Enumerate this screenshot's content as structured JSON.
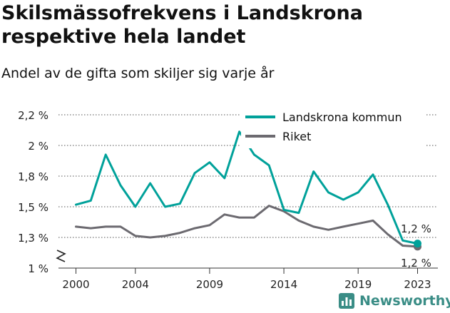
{
  "header": {
    "title": "Skilsmässofrekvens i Landskrona respektive hela landet",
    "subtitle": "Andel av de gifta som skiljer sig varje år"
  },
  "brand": {
    "name": "Newsworthy",
    "icon": "bar-chart-icon",
    "color": "#3a8d86"
  },
  "chart_data": {
    "type": "line",
    "title": "Skilsmässofrekvens i Landskrona respektive hela landet",
    "subtitle": "Andel av de gifta som skiljer sig varje år",
    "x": [
      2000,
      2001,
      2002,
      2003,
      2004,
      2005,
      2006,
      2007,
      2008,
      2009,
      2010,
      2011,
      2012,
      2013,
      2014,
      2015,
      2016,
      2017,
      2018,
      2019,
      2020,
      2021,
      2022,
      2023
    ],
    "x_ticks": [
      2000,
      2004,
      2009,
      2014,
      2019,
      2023
    ],
    "x_tick_labels": [
      "2000",
      "2004",
      "2009",
      "2014",
      "2019",
      "2023"
    ],
    "xlim": [
      1999,
      2024
    ],
    "y_ticks": [
      1.0,
      1.3,
      1.5,
      1.8,
      2.0,
      2.2
    ],
    "y_tick_labels": [
      "1 %",
      "1,3 %",
      "1,5 %",
      "1,8 %",
      "2 %",
      "2,2 %"
    ],
    "ylim": [
      1.0,
      2.2
    ],
    "y_axis_break": true,
    "grid": "horizontal",
    "legend_position": "top-right",
    "series": [
      {
        "name": "Landskrona kommun",
        "color": "#00a19a",
        "values": [
          1.52,
          1.56,
          1.94,
          1.71,
          1.5,
          1.73,
          1.5,
          1.53,
          1.82,
          1.89,
          1.78,
          2.09,
          1.94,
          1.87,
          1.48,
          1.46,
          1.83,
          1.64,
          1.57,
          1.64,
          1.81,
          1.52,
          1.27,
          1.24
        ],
        "end_label": "1,2 %"
      },
      {
        "name": "Riket",
        "color": "#6c6a70",
        "values": [
          1.37,
          1.36,
          1.37,
          1.37,
          1.31,
          1.3,
          1.31,
          1.33,
          1.36,
          1.38,
          1.45,
          1.43,
          1.43,
          1.51,
          1.47,
          1.41,
          1.37,
          1.35,
          1.37,
          1.39,
          1.41,
          1.32,
          1.22,
          1.21
        ],
        "end_label": "1,2 %"
      }
    ]
  }
}
